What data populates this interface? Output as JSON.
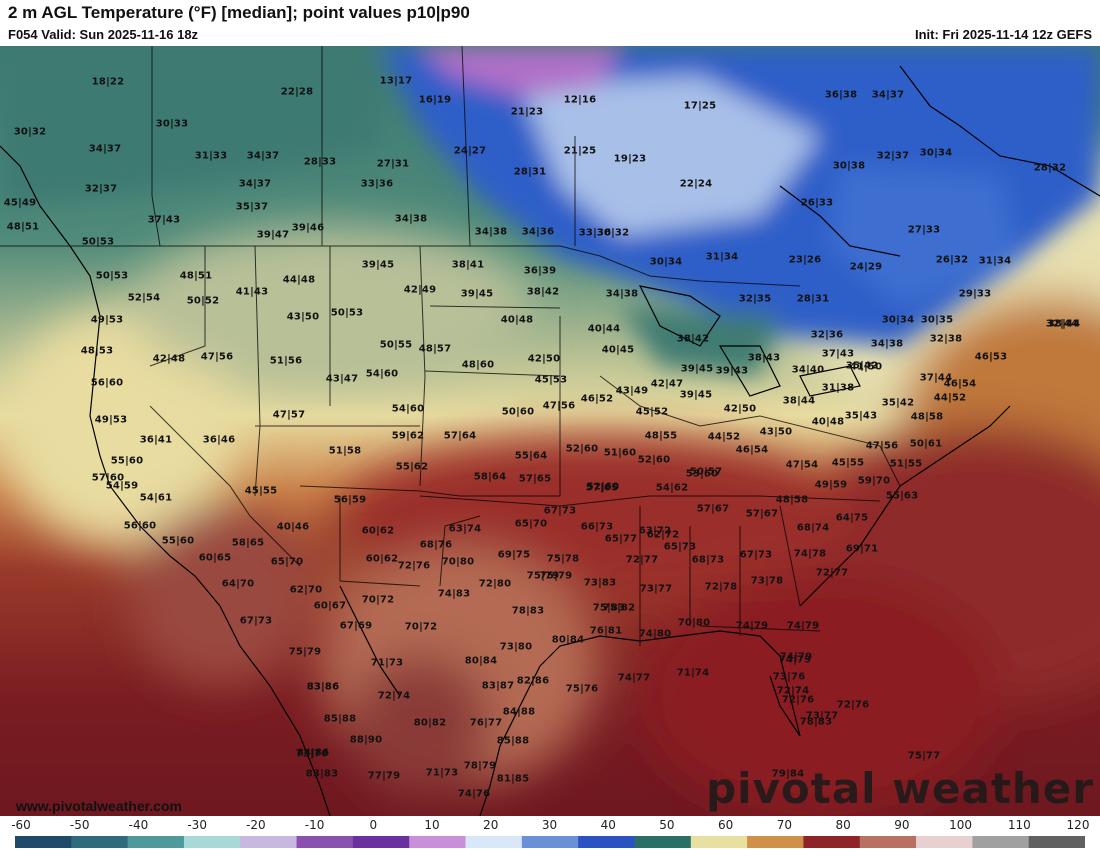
{
  "header": {
    "title": "2 m AGL Temperature (°F) [median]; point values p10|p90",
    "valid": "F054 Valid: Sun 2025-11-16 18z",
    "init": "Init: Fri 2025-11-14 12z GEFS"
  },
  "footer": {
    "website": "www.pivotalweather.com",
    "logo_text": "pivotal weather"
  },
  "colorbar": {
    "ticks": [
      "-60",
      "-50",
      "-40",
      "-30",
      "-20",
      "-10",
      "0",
      "10",
      "20",
      "30",
      "40",
      "50",
      "60",
      "70",
      "80",
      "90",
      "100",
      "110",
      "120"
    ]
  },
  "colors": {
    "cold_purple": "#b070c8",
    "deep_blue": "#2f5fc8",
    "light_blue": "#a8c0e8",
    "teal": "#2f6e6a",
    "pale_yellow": "#f2e9b0",
    "orange": "#c26a32",
    "dark_red": "#7a1a20"
  },
  "point_values": [
    "18|22",
    "22|28",
    "13|17",
    "16|19",
    "21|23",
    "12|16",
    "17|25",
    "36|38",
    "34|37",
    "30|32",
    "30|33",
    "34|37",
    "31|33",
    "34|37",
    "28|33",
    "27|31",
    "24|27",
    "21|25",
    "19|23",
    "30|38",
    "32|37",
    "30|34",
    "28|32",
    "32|37",
    "28|31",
    "22|24",
    "34|37",
    "33|36",
    "45|49",
    "35|37",
    "37|43",
    "26|33",
    "27|33",
    "34|38",
    "48|51",
    "39|47",
    "39|46",
    "34|38",
    "34|36",
    "33|36",
    "30|32",
    "23|26",
    "24|29",
    "26|32",
    "31|34",
    "50|53",
    "39|45",
    "38|41",
    "36|39",
    "30|34",
    "31|34",
    "50|53",
    "48|51",
    "41|43",
    "44|48",
    "42|49",
    "39|45",
    "38|42",
    "34|38",
    "32|35",
    "28|31",
    "29|33",
    "52|54",
    "50|52",
    "43|50",
    "50|53",
    "40|48",
    "40|44",
    "30|34",
    "30|35",
    "32|44",
    "38|44",
    "49|53",
    "38|42",
    "32|36",
    "32|38",
    "34|38",
    "48|53",
    "42|48",
    "47|56",
    "51|56",
    "50|55",
    "48|57",
    "42|50",
    "40|45",
    "37|43",
    "41|50",
    "46|53",
    "56|60",
    "43|47",
    "54|60",
    "48|60",
    "45|53",
    "39|45",
    "39|43",
    "38|43",
    "34|40",
    "35|42",
    "37|44",
    "47|57",
    "54|60",
    "50|60",
    "47|56",
    "46|52",
    "43|49",
    "42|47",
    "39|45",
    "31|38",
    "44|52",
    "46|54",
    "49|53",
    "38|44",
    "42|50",
    "35|43",
    "35|42",
    "48|58",
    "36|41",
    "36|46",
    "59|62",
    "57|64",
    "45|52",
    "48|55",
    "44|52",
    "43|50",
    "40|48",
    "47|56",
    "50|61",
    "55|60",
    "51|58",
    "55|62",
    "55|64",
    "52|60",
    "51|60",
    "52|60",
    "46|54",
    "54|59",
    "58|64",
    "57|65",
    "52|60",
    "50|57",
    "47|54",
    "45|55",
    "51|55",
    "54|61",
    "57|65",
    "54|62",
    "49|59",
    "59|70",
    "45|55",
    "48|58",
    "55|63",
    "57|60",
    "57|67",
    "57|67",
    "53|60",
    "40|46",
    "56|59",
    "67|73",
    "64|75",
    "56|60",
    "60|62",
    "63|74",
    "65|70",
    "66|73",
    "63|72",
    "68|74",
    "55|60",
    "58|65",
    "68|76",
    "69|75",
    "65|77",
    "65|73",
    "62|72",
    "74|78",
    "69|71",
    "60|65",
    "65|70",
    "72|76",
    "70|80",
    "75|78",
    "72|77",
    "68|73",
    "67|73",
    "60|62",
    "64|70",
    "62|70",
    "75|79",
    "73|83",
    "73|77",
    "72|78",
    "73|78",
    "72|77",
    "60|67",
    "70|72",
    "74|83",
    "72|80",
    "75|79",
    "67|73",
    "67|69",
    "70|72",
    "78|83",
    "75|83",
    "75|82",
    "70|80",
    "74|79",
    "74|79",
    "80|84",
    "76|81",
    "74|80",
    "75|79",
    "71|73",
    "73|80",
    "80|84",
    "74|79",
    "83|86",
    "72|74",
    "83|87",
    "82|86",
    "75|76",
    "74|77",
    "71|74",
    "73|76",
    "74|79",
    "85|88",
    "83|86",
    "76|77",
    "84|88",
    "72|74",
    "72|76",
    "73|77",
    "78|83",
    "88|90",
    "80|82",
    "85|88",
    "72|76",
    "84|86",
    "73|76",
    "75|77",
    "83|83",
    "77|79",
    "71|73",
    "78|79",
    "81|85",
    "79|84",
    "74|76"
  ]
}
